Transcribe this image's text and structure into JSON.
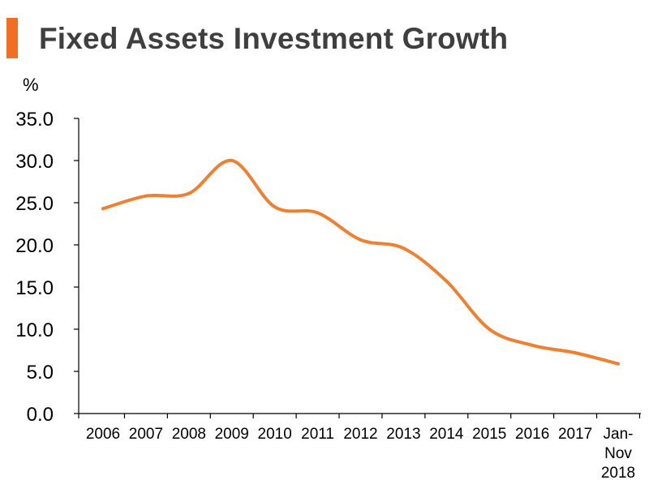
{
  "header": {
    "title": "Fixed Assets Investment Growth",
    "accent_color": "#f26f21"
  },
  "chart_data": {
    "type": "line",
    "title": "Fixed Assets Investment Growth",
    "ylabel": "%",
    "xlabel": "",
    "ylim": [
      0,
      35
    ],
    "y_ticks": [
      "0.0",
      "5.0",
      "10.0",
      "15.0",
      "20.0",
      "25.0",
      "30.0",
      "35.0"
    ],
    "categories": [
      "2006",
      "2007",
      "2008",
      "2009",
      "2010",
      "2011",
      "2012",
      "2013",
      "2014",
      "2015",
      "2016",
      "2017",
      "Jan-Nov 2018"
    ],
    "category_label_lines": [
      [
        "2006"
      ],
      [
        "2007"
      ],
      [
        "2008"
      ],
      [
        "2009"
      ],
      [
        "2010"
      ],
      [
        "2011"
      ],
      [
        "2012"
      ],
      [
        "2013"
      ],
      [
        "2014"
      ],
      [
        "2015"
      ],
      [
        "2016"
      ],
      [
        "2017"
      ],
      [
        "Jan-",
        "Nov",
        "2018"
      ]
    ],
    "series": [
      {
        "name": "Fixed Assets Investment Growth",
        "color": "#f08030",
        "values": [
          24.3,
          25.8,
          26.1,
          30.0,
          24.5,
          23.8,
          20.6,
          19.6,
          15.7,
          10.0,
          8.1,
          7.2,
          5.9
        ]
      }
    ],
    "grid": false
  }
}
